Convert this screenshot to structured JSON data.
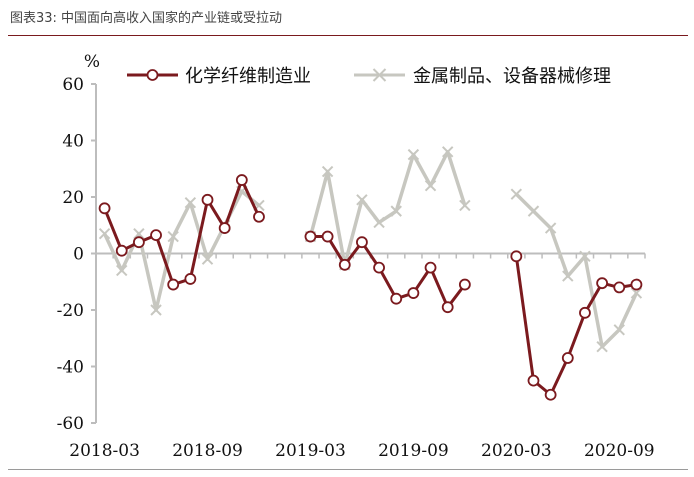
{
  "caption": "图表33: 中国面向高收入国家的产业链或受拉动",
  "chart_data": {
    "type": "line",
    "ylabel": "%",
    "ylim": [
      -60,
      60
    ],
    "yticks": [
      60,
      40,
      20,
      0,
      -20,
      -40,
      -60
    ],
    "x": [
      "2018-03",
      "2018-04",
      "2018-05",
      "2018-06",
      "2018-07",
      "2018-08",
      "2018-09",
      "2018-10",
      "2018-11",
      "2018-12",
      "2019-01",
      "2019-02",
      "2019-03",
      "2019-04",
      "2019-05",
      "2019-06",
      "2019-07",
      "2019-08",
      "2019-09",
      "2019-10",
      "2019-11",
      "2019-12",
      "2020-01",
      "2020-02",
      "2020-03",
      "2020-04",
      "2020-05",
      "2020-06",
      "2020-07",
      "2020-08",
      "2020-09",
      "2020-10"
    ],
    "xticks": [
      "2018-03",
      "2018-09",
      "2019-03",
      "2019-09",
      "2020-03",
      "2020-09"
    ],
    "grid": false,
    "legend_position": "top",
    "series": [
      {
        "name": "化学纤维制造业",
        "color": "#7b1a1e",
        "marker": "circle",
        "values": [
          16,
          1,
          4,
          6.5,
          -11,
          -9,
          19,
          9,
          26,
          13,
          null,
          null,
          6,
          6,
          -4,
          4,
          -5,
          -16,
          -14,
          -5,
          -19,
          -11,
          null,
          null,
          -1,
          -45,
          -50,
          -37,
          -21,
          -10.5,
          -12,
          -11
        ]
      },
      {
        "name": "金属制品、设备器械修理",
        "color": "#c7c7c0",
        "marker": "x",
        "values": [
          7,
          -6,
          7,
          -20,
          6,
          18,
          -2,
          10,
          22,
          17,
          null,
          null,
          6,
          29,
          -4,
          19,
          11,
          15,
          35,
          24,
          36,
          17,
          null,
          null,
          21,
          15,
          9,
          -8,
          -1,
          -33,
          -27,
          -14
        ]
      }
    ]
  }
}
